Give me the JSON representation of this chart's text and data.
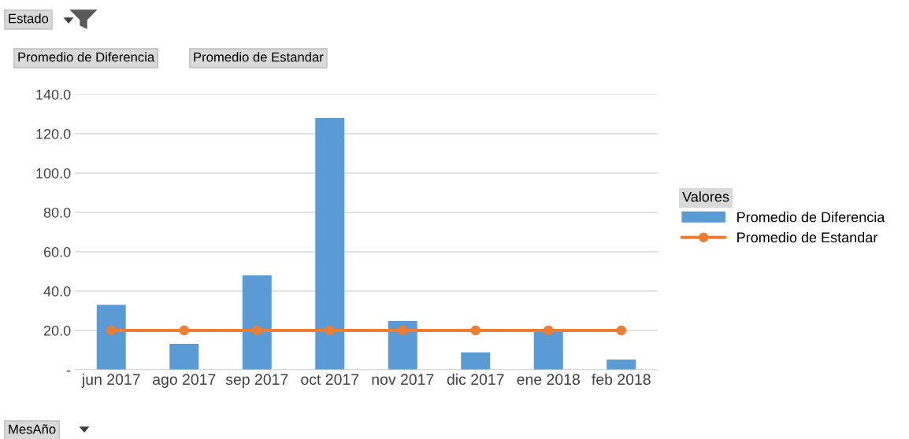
{
  "chart_data": {
    "type": "bar",
    "categories": [
      "jun 2017",
      "ago 2017",
      "sep 2017",
      "oct 2017",
      "nov 2017",
      "dic 2017",
      "ene 2018",
      "feb 2018"
    ],
    "series": [
      {
        "name": "Promedio de Diferencia",
        "color": "#5b9bd5",
        "values": [
          33,
          13.2,
          48,
          128,
          24.8,
          8.8,
          19.6,
          5.2
        ]
      },
      {
        "name": "Promedio de Estandar",
        "type": "line",
        "color": "#ed7d31",
        "marker": "circle",
        "values": [
          20,
          20,
          20,
          20,
          20,
          20,
          20,
          20
        ]
      }
    ],
    "ylim": [
      0,
      140
    ],
    "yticks": [
      {
        "value": 0,
        "label": "-"
      },
      {
        "value": 20,
        "label": "20.0"
      },
      {
        "value": 40,
        "label": "40.0"
      },
      {
        "value": 60,
        "label": "60.0"
      },
      {
        "value": 80,
        "label": "80.0"
      },
      {
        "value": 100,
        "label": "100.0"
      },
      {
        "value": 120,
        "label": "120.0"
      },
      {
        "value": 140,
        "label": "140.0"
      }
    ],
    "grid": "y",
    "legend": "right",
    "legend_title": "Valores",
    "annotations": [
      "Estado",
      "Promedio de Diferencia",
      "Promedio de Estandar",
      "MesAño"
    ]
  }
}
